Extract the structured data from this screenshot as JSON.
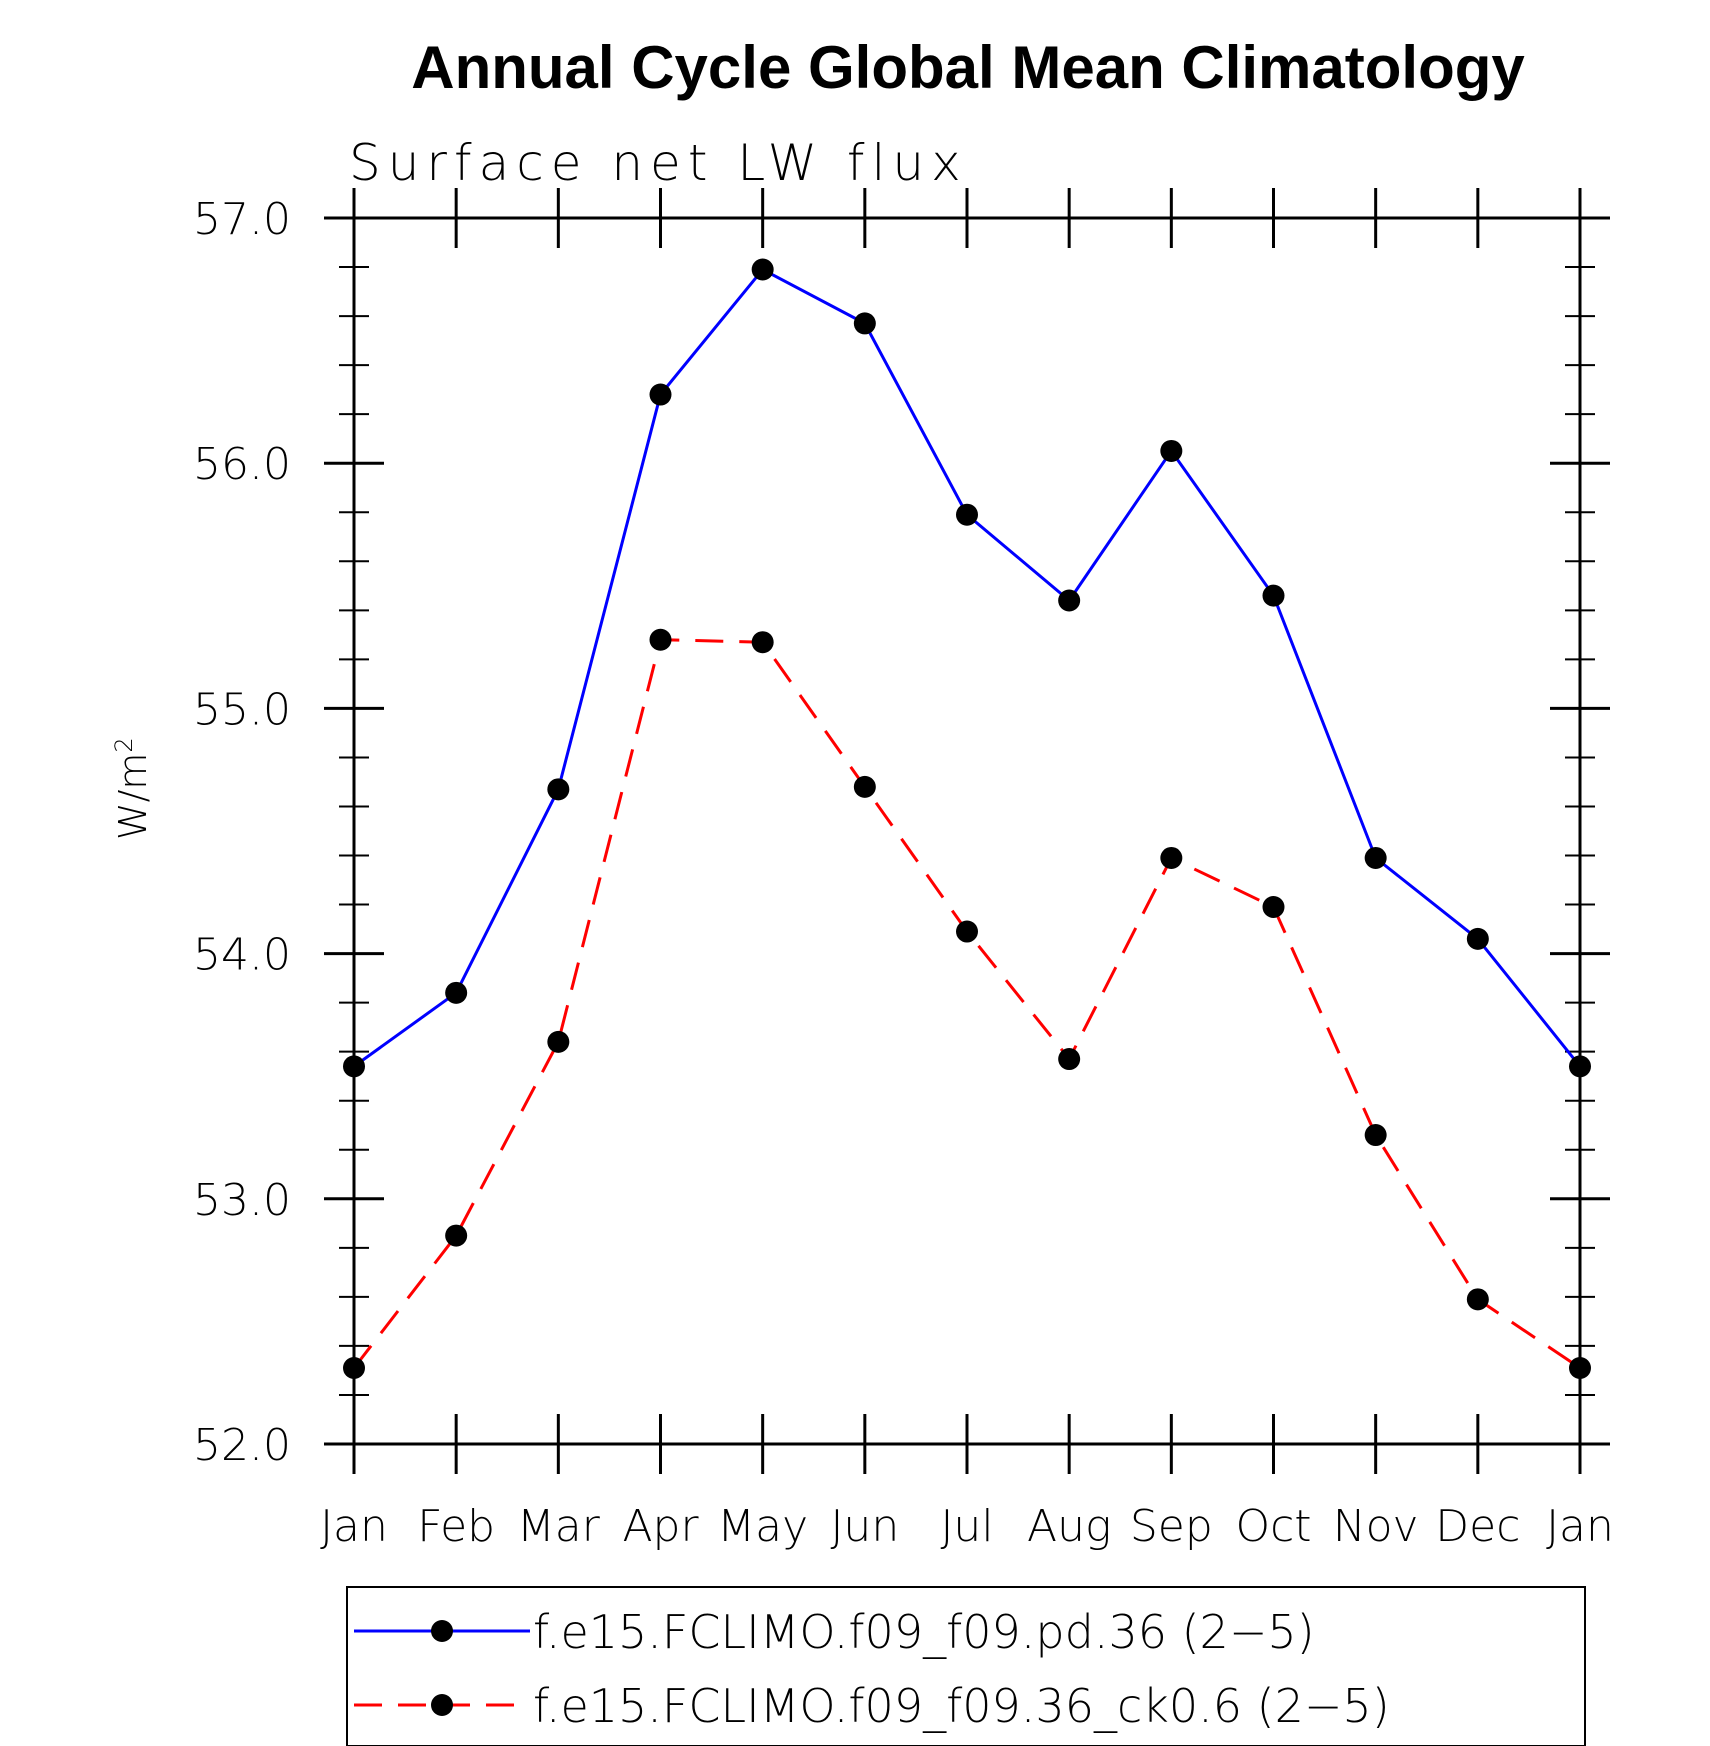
{
  "chart_data": {
    "type": "line",
    "title": "Annual Cycle Global Mean Climatology",
    "subtitle": "Surface net LW flux",
    "ylabel_main": "W/m",
    "ylabel_sup": "2",
    "xlabel": "",
    "categories": [
      "Jan",
      "Feb",
      "Mar",
      "Apr",
      "May",
      "Jun",
      "Jul",
      "Aug",
      "Sep",
      "Oct",
      "Nov",
      "Dec",
      "Jan"
    ],
    "ylim": [
      52.0,
      57.0
    ],
    "yticks": [
      "52.0",
      "53.0",
      "54.0",
      "55.0",
      "56.0",
      "57.0"
    ],
    "grid": false,
    "legend_position": "bottom",
    "series": [
      {
        "name": "f.e15.FCLIMO.f09_f09.pd.36 (2−5)",
        "color": "#0000ff",
        "dash": "solid",
        "marker": "filled-circle",
        "values": [
          53.54,
          53.84,
          54.67,
          56.28,
          56.79,
          56.57,
          55.79,
          55.44,
          56.05,
          55.46,
          54.39,
          54.06,
          53.54
        ]
      },
      {
        "name": "f.e15.FCLIMO.f09_f09.36_ck0.6 (2−5)",
        "color": "#ff0000",
        "dash": "dashed",
        "marker": "filled-circle",
        "values": [
          52.31,
          52.85,
          53.64,
          55.28,
          55.27,
          54.68,
          54.09,
          53.57,
          54.39,
          54.19,
          53.26,
          52.59,
          52.31
        ]
      }
    ]
  }
}
